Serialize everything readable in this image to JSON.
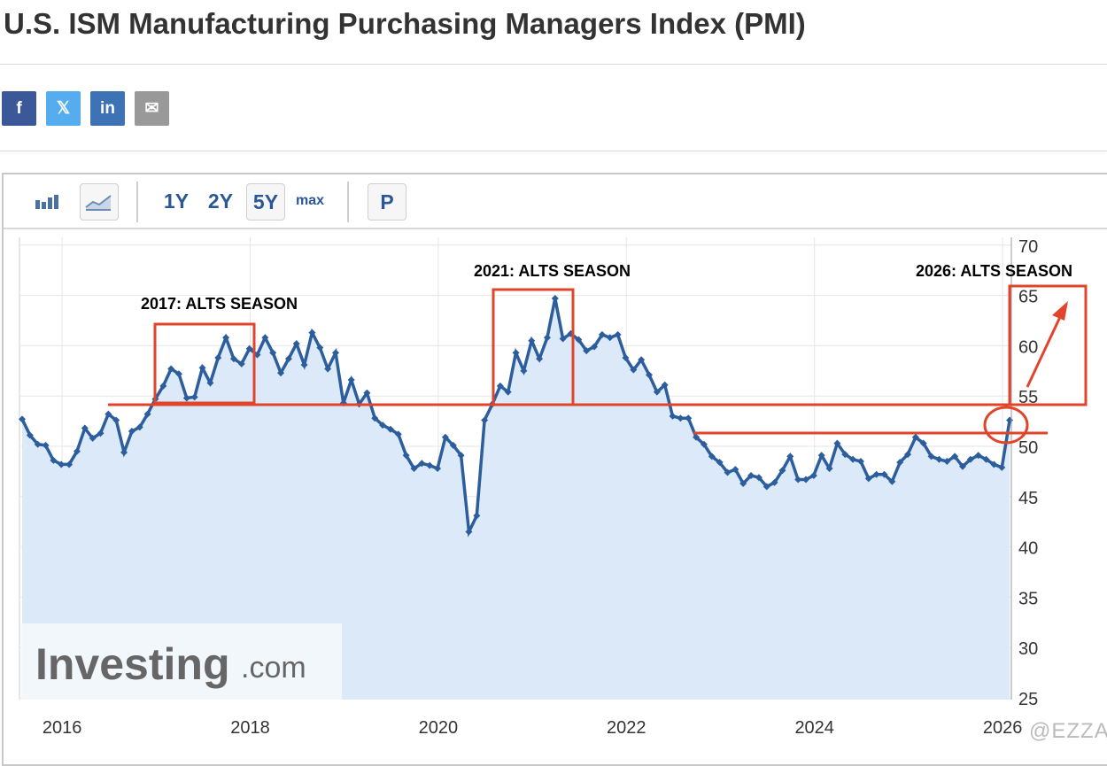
{
  "page": {
    "title": "U.S. ISM Manufacturing Purchasing Managers Index (PMI)",
    "watermark": "@EZZA"
  },
  "share": [
    {
      "name": "facebook",
      "glyph": "f",
      "color": "#3b5998"
    },
    {
      "name": "x",
      "glyph": "𝕏",
      "color": "#55acee"
    },
    {
      "name": "linkedin",
      "glyph": "in",
      "color": "#3d72b4"
    },
    {
      "name": "email",
      "glyph": "✉",
      "color": "#999999"
    }
  ],
  "toolbar": {
    "ranges": [
      "1Y",
      "2Y",
      "5Y",
      "max"
    ],
    "selected_range": "5Y",
    "p_label": "P"
  },
  "logo": {
    "text": "Investing",
    "suffix": ".com"
  },
  "chart_data": {
    "type": "area",
    "title": "U.S. ISM Manufacturing Purchasing Managers Index (PMI)",
    "start": "2015-07",
    "frequency": "monthly",
    "values": [
      52.7,
      51.1,
      50.2,
      50.1,
      48.6,
      48.2,
      48.2,
      49.5,
      51.8,
      50.8,
      51.3,
      53.2,
      52.6,
      49.4,
      51.5,
      51.9,
      53.2,
      54.7,
      56.0,
      57.7,
      57.2,
      54.8,
      54.9,
      57.8,
      56.3,
      58.8,
      60.8,
      58.7,
      58.2,
      59.7,
      59.1,
      60.8,
      59.3,
      57.3,
      58.7,
      60.2,
      58.1,
      61.3,
      59.8,
      57.7,
      59.3,
      54.3,
      56.6,
      54.2,
      55.3,
      52.8,
      52.1,
      51.7,
      51.2,
      49.1,
      47.8,
      48.3,
      48.1,
      47.8,
      50.9,
      50.1,
      49.1,
      41.5,
      43.1,
      52.6,
      54.2,
      56.0,
      55.4,
      59.3,
      57.5,
      60.5,
      58.7,
      60.8,
      64.7,
      60.7,
      61.2,
      60.6,
      59.5,
      59.9,
      61.1,
      60.8,
      61.1,
      58.8,
      57.6,
      58.6,
      57.1,
      55.4,
      56.1,
      53.0,
      52.8,
      52.8,
      50.9,
      50.2,
      49.0,
      48.4,
      47.4,
      47.7,
      46.3,
      47.1,
      46.9,
      46.0,
      46.4,
      47.6,
      49.0,
      46.7,
      46.7,
      47.1,
      49.1,
      47.8,
      50.3,
      49.2,
      48.7,
      48.5,
      46.8,
      47.2,
      47.2,
      46.5,
      48.4,
      49.2,
      50.9,
      50.3,
      49.0,
      48.7,
      48.5,
      49.0,
      48.0,
      48.7,
      49.1,
      48.7,
      48.2,
      47.9,
      52.6
    ],
    "x_ticks": [
      "2016",
      "2018",
      "2020",
      "2022",
      "2024",
      "2026"
    ],
    "y_ticks": [
      25,
      30,
      35,
      40,
      45,
      50,
      55,
      60,
      65,
      70
    ],
    "ylim": [
      25,
      70
    ],
    "grid": true,
    "annotations": [
      {
        "text": "2017: ALTS SEASON"
      },
      {
        "text": "2021: ALTS SEASON"
      },
      {
        "text": "2026: ALTS SEASON"
      }
    ],
    "reference_lines": [
      54.1,
      51.3
    ],
    "colors": {
      "line": "#2c5d9c",
      "fill": "#dce9f8",
      "annotation": "#e0452b"
    }
  }
}
